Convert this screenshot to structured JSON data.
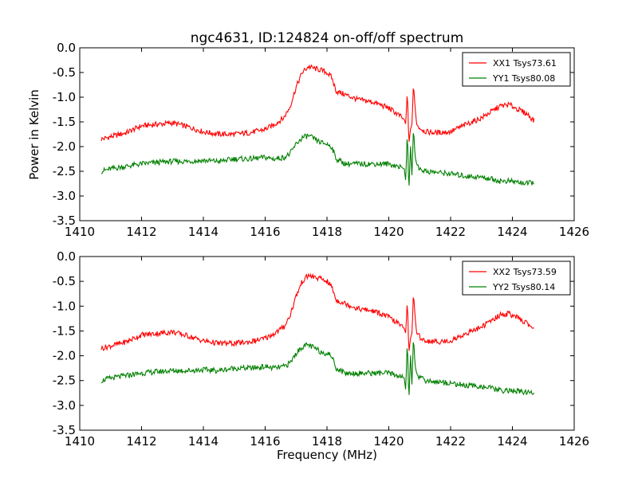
{
  "chart_data": [
    {
      "type": "line",
      "title": "ngc4631, ID:124824 on-off/off spectrum",
      "xlabel": "",
      "ylabel": "Power in Kelvin",
      "xlim": [
        1410,
        1426
      ],
      "ylim": [
        -3.5,
        0.0
      ],
      "xticks": [
        "1410",
        "1412",
        "1414",
        "1416",
        "1418",
        "1420",
        "1422",
        "1424",
        "1426"
      ],
      "yticks": [
        "0.0",
        "-0.5",
        "-1.0",
        "-1.5",
        "-2.0",
        "-2.5",
        "-3.0",
        "-3.5"
      ],
      "grid": false,
      "legend_position": "top-right",
      "series": [
        {
          "name": "XX1 Tsys73.61",
          "color": "#ff0000",
          "x": [
            1410.7,
            1411.0,
            1411.5,
            1412.0,
            1412.5,
            1413.0,
            1413.5,
            1414.0,
            1414.5,
            1415.0,
            1415.5,
            1416.0,
            1416.3,
            1416.6,
            1416.8,
            1417.0,
            1417.2,
            1417.4,
            1417.6,
            1417.8,
            1418.0,
            1418.15,
            1418.3,
            1418.6,
            1419.0,
            1419.5,
            1420.0,
            1420.3,
            1420.5,
            1420.55,
            1420.6,
            1420.65,
            1420.7,
            1420.75,
            1420.8,
            1420.85,
            1420.9,
            1421.0,
            1421.2,
            1421.5,
            1422.0,
            1422.5,
            1423.0,
            1423.3,
            1423.6,
            1423.9,
            1424.2,
            1424.5,
            1424.7
          ],
          "y": [
            -1.85,
            -1.8,
            -1.72,
            -1.58,
            -1.55,
            -1.52,
            -1.6,
            -1.7,
            -1.75,
            -1.75,
            -1.72,
            -1.65,
            -1.55,
            -1.42,
            -1.2,
            -0.8,
            -0.5,
            -0.38,
            -0.42,
            -0.45,
            -0.5,
            -0.6,
            -0.88,
            -0.95,
            -1.05,
            -1.1,
            -1.22,
            -1.35,
            -1.45,
            -1.55,
            -0.85,
            -1.95,
            -1.65,
            -1.55,
            -0.72,
            -1.2,
            -1.55,
            -1.62,
            -1.7,
            -1.72,
            -1.7,
            -1.55,
            -1.42,
            -1.3,
            -1.18,
            -1.15,
            -1.25,
            -1.35,
            -1.48
          ]
        },
        {
          "name": "YY1 Tsys80.08",
          "color": "#008000",
          "x": [
            1410.7,
            1411.0,
            1411.5,
            1412.0,
            1412.5,
            1413.0,
            1413.5,
            1414.0,
            1414.5,
            1415.0,
            1415.5,
            1416.0,
            1416.3,
            1416.6,
            1416.8,
            1417.0,
            1417.2,
            1417.4,
            1417.6,
            1417.8,
            1418.0,
            1418.15,
            1418.3,
            1418.6,
            1419.0,
            1419.5,
            1420.0,
            1420.3,
            1420.5,
            1420.55,
            1420.6,
            1420.65,
            1420.7,
            1420.75,
            1420.8,
            1420.85,
            1420.9,
            1421.0,
            1421.2,
            1421.5,
            1422.0,
            1422.5,
            1423.0,
            1423.3,
            1423.6,
            1423.9,
            1424.2,
            1424.5,
            1424.7
          ],
          "y": [
            -2.5,
            -2.45,
            -2.4,
            -2.35,
            -2.32,
            -2.3,
            -2.3,
            -2.28,
            -2.3,
            -2.25,
            -2.25,
            -2.22,
            -2.25,
            -2.22,
            -2.15,
            -1.95,
            -1.82,
            -1.78,
            -1.85,
            -1.92,
            -1.95,
            -2.0,
            -2.25,
            -2.35,
            -2.35,
            -2.35,
            -2.35,
            -2.4,
            -2.45,
            -2.7,
            -1.65,
            -2.95,
            -1.95,
            -2.6,
            -1.6,
            -2.2,
            -2.35,
            -2.45,
            -2.5,
            -2.52,
            -2.55,
            -2.6,
            -2.62,
            -2.65,
            -2.7,
            -2.7,
            -2.72,
            -2.75,
            -2.72
          ]
        }
      ]
    },
    {
      "type": "line",
      "title": "",
      "xlabel": "Frequency (MHz)",
      "ylabel": "",
      "xlim": [
        1410,
        1426
      ],
      "ylim": [
        -3.5,
        0.0
      ],
      "xticks": [
        "1410",
        "1412",
        "1414",
        "1416",
        "1418",
        "1420",
        "1422",
        "1424",
        "1426"
      ],
      "yticks": [
        "0.0",
        "-0.5",
        "-1.0",
        "-1.5",
        "-2.0",
        "-2.5",
        "-3.0",
        "-3.5"
      ],
      "grid": false,
      "legend_position": "top-right",
      "series": [
        {
          "name": "XX2 Tsys73.59",
          "color": "#ff0000",
          "x": [
            1410.7,
            1411.0,
            1411.5,
            1412.0,
            1412.5,
            1413.0,
            1413.5,
            1414.0,
            1414.5,
            1415.0,
            1415.5,
            1416.0,
            1416.3,
            1416.6,
            1416.8,
            1417.0,
            1417.2,
            1417.4,
            1417.6,
            1417.8,
            1418.0,
            1418.15,
            1418.3,
            1418.6,
            1419.0,
            1419.5,
            1420.0,
            1420.3,
            1420.5,
            1420.55,
            1420.6,
            1420.65,
            1420.7,
            1420.75,
            1420.8,
            1420.85,
            1420.9,
            1421.0,
            1421.2,
            1421.5,
            1422.0,
            1422.5,
            1423.0,
            1423.3,
            1423.6,
            1423.9,
            1424.2,
            1424.5,
            1424.7
          ],
          "y": [
            -1.85,
            -1.8,
            -1.72,
            -1.58,
            -1.55,
            -1.52,
            -1.6,
            -1.7,
            -1.75,
            -1.75,
            -1.72,
            -1.65,
            -1.55,
            -1.42,
            -1.2,
            -0.8,
            -0.5,
            -0.38,
            -0.42,
            -0.45,
            -0.5,
            -0.6,
            -0.88,
            -0.95,
            -1.05,
            -1.1,
            -1.22,
            -1.35,
            -1.45,
            -1.55,
            -0.85,
            -1.95,
            -1.65,
            -1.55,
            -0.72,
            -1.2,
            -1.55,
            -1.62,
            -1.7,
            -1.72,
            -1.7,
            -1.55,
            -1.42,
            -1.3,
            -1.18,
            -1.15,
            -1.25,
            -1.35,
            -1.48
          ]
        },
        {
          "name": "YY2 Tsys80.14",
          "color": "#008000",
          "x": [
            1410.7,
            1411.0,
            1411.5,
            1412.0,
            1412.5,
            1413.0,
            1413.5,
            1414.0,
            1414.5,
            1415.0,
            1415.5,
            1416.0,
            1416.3,
            1416.6,
            1416.8,
            1417.0,
            1417.2,
            1417.4,
            1417.6,
            1417.8,
            1418.0,
            1418.15,
            1418.3,
            1418.6,
            1419.0,
            1419.5,
            1420.0,
            1420.3,
            1420.5,
            1420.55,
            1420.6,
            1420.65,
            1420.7,
            1420.75,
            1420.8,
            1420.85,
            1420.9,
            1421.0,
            1421.2,
            1421.5,
            1422.0,
            1422.5,
            1423.0,
            1423.3,
            1423.6,
            1423.9,
            1424.2,
            1424.5,
            1424.7
          ],
          "y": [
            -2.5,
            -2.45,
            -2.4,
            -2.35,
            -2.32,
            -2.3,
            -2.3,
            -2.28,
            -2.3,
            -2.25,
            -2.25,
            -2.22,
            -2.25,
            -2.22,
            -2.15,
            -1.95,
            -1.82,
            -1.78,
            -1.85,
            -1.92,
            -1.95,
            -2.0,
            -2.25,
            -2.35,
            -2.35,
            -2.35,
            -2.35,
            -2.4,
            -2.45,
            -2.7,
            -1.65,
            -2.95,
            -1.95,
            -2.6,
            -1.6,
            -2.2,
            -2.35,
            -2.45,
            -2.5,
            -2.52,
            -2.55,
            -2.6,
            -2.62,
            -2.65,
            -2.7,
            -2.7,
            -2.72,
            -2.75,
            -2.72
          ]
        }
      ]
    }
  ]
}
